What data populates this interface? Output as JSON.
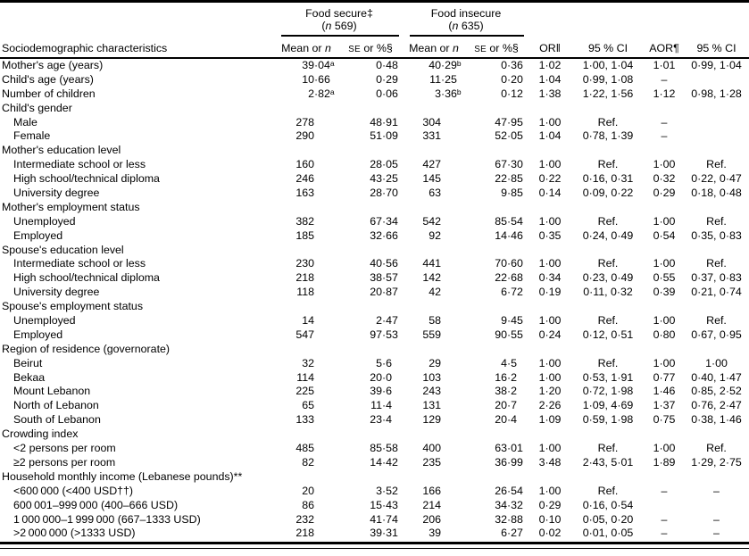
{
  "table": {
    "header": {
      "stub": "Sociodemographic characteristics",
      "groups": [
        {
          "title": "Food secure‡",
          "n_open": "(",
          "n_char": "n",
          "n_rest": " 569)"
        },
        {
          "title": "Food insecure",
          "n_open": "(",
          "n_char": "n",
          "n_rest": " 635)"
        }
      ],
      "subheaders": {
        "mean_prefix": "Mean or ",
        "mean_n": "n",
        "se_sc": "SE",
        "se_suffix": " or %§",
        "or": "OR‖",
        "ci": "95 % CI",
        "aor": "AOR¶",
        "ci2": "95 % CI"
      }
    },
    "rows": [
      {
        "label": "Mother's age (years)",
        "indent": 0,
        "cells": [
          "39·04ᵃ",
          "0·48",
          "40·29ᵇ",
          "0·36",
          "1·02",
          "1·00, 1·04",
          "1·01",
          "0·99, 1·04"
        ]
      },
      {
        "label": "Child's age (years)",
        "indent": 0,
        "cells": [
          "10·66",
          "0·29",
          "11·25",
          "0·20",
          "1·04",
          "0·99, 1·08",
          "–",
          ""
        ]
      },
      {
        "label": "Number of children",
        "indent": 0,
        "cells": [
          "2·82ᵃ",
          "0·06",
          "3·36ᵇ",
          "0·12",
          "1·38",
          "1·22, 1·56",
          "1·12",
          "0·98, 1·28"
        ]
      },
      {
        "label": "Child's gender",
        "indent": 0,
        "cells": null
      },
      {
        "label": "Male",
        "indent": 1,
        "cells": [
          "278",
          "48·91",
          "304",
          "47·95",
          "1·00",
          "Ref.",
          "–",
          ""
        ]
      },
      {
        "label": "Female",
        "indent": 1,
        "cells": [
          "290",
          "51·09",
          "331",
          "52·05",
          "1·04",
          "0·78, 1·39",
          "–",
          ""
        ]
      },
      {
        "label": "Mother's education level",
        "indent": 0,
        "cells": null
      },
      {
        "label": "Intermediate school or less",
        "indent": 1,
        "cells": [
          "160",
          "28·05",
          "427",
          "67·30",
          "1·00",
          "Ref.",
          "1·00",
          "Ref."
        ]
      },
      {
        "label": "High school/technical diploma",
        "indent": 1,
        "cells": [
          "246",
          "43·25",
          "145",
          "22·85",
          "0·22",
          "0·16, 0·31",
          "0·32",
          "0·22, 0·47"
        ]
      },
      {
        "label": "University degree",
        "indent": 1,
        "cells": [
          "163",
          "28·70",
          "63",
          "9·85",
          "0·14",
          "0·09, 0·22",
          "0·29",
          "0·18, 0·48"
        ]
      },
      {
        "label": "Mother's employment status",
        "indent": 0,
        "cells": null
      },
      {
        "label": "Unemployed",
        "indent": 1,
        "cells": [
          "382",
          "67·34",
          "542",
          "85·54",
          "1·00",
          "Ref.",
          "1·00",
          "Ref."
        ]
      },
      {
        "label": "Employed",
        "indent": 1,
        "cells": [
          "185",
          "32·66",
          "92",
          "14·46",
          "0·35",
          "0·24, 0·49",
          "0·54",
          "0·35, 0·83"
        ]
      },
      {
        "label": "Spouse's education level",
        "indent": 0,
        "cells": null
      },
      {
        "label": "Intermediate school or less",
        "indent": 1,
        "cells": [
          "230",
          "40·56",
          "441",
          "70·60",
          "1·00",
          "Ref.",
          "1·00",
          "Ref."
        ]
      },
      {
        "label": "High school/technical diploma",
        "indent": 1,
        "cells": [
          "218",
          "38·57",
          "142",
          "22·68",
          "0·34",
          "0·23, 0·49",
          "0·55",
          "0·37, 0·83"
        ]
      },
      {
        "label": "University degree",
        "indent": 1,
        "cells": [
          "118",
          "20·87",
          "42",
          "6·72",
          "0·19",
          "0·11, 0·32",
          "0·39",
          "0·21, 0·74"
        ]
      },
      {
        "label": "Spouse's employment status",
        "indent": 0,
        "cells": null
      },
      {
        "label": "Unemployed",
        "indent": 1,
        "cells": [
          "14",
          "2·47",
          "58",
          "9·45",
          "1·00",
          "Ref.",
          "1·00",
          "Ref."
        ]
      },
      {
        "label": "Employed",
        "indent": 1,
        "cells": [
          "547",
          "97·53",
          "559",
          "90·55",
          "0·24",
          "0·12, 0·51",
          "0·80",
          "0·67, 0·95"
        ]
      },
      {
        "label": "Region of residence (governorate)",
        "indent": 0,
        "cells": null
      },
      {
        "label": "Beirut",
        "indent": 1,
        "cells": [
          "32",
          "5·6",
          "29",
          "4·5",
          "1·00",
          "Ref.",
          "1·00",
          "1·00"
        ]
      },
      {
        "label": "Bekaa",
        "indent": 1,
        "cells": [
          "114",
          "20·0",
          "103",
          "16·2",
          "1·00",
          "0·53, 1·91",
          "0·77",
          "0·40, 1·47"
        ]
      },
      {
        "label": "Mount Lebanon",
        "indent": 1,
        "cells": [
          "225",
          "39·6",
          "243",
          "38·2",
          "1·20",
          "0·72, 1·98",
          "1·46",
          "0·85, 2·52"
        ]
      },
      {
        "label": "North of Lebanon",
        "indent": 1,
        "cells": [
          "65",
          "11·4",
          "131",
          "20·7",
          "2·26",
          "1·09, 4·69",
          "1·37",
          "0·76, 2·47"
        ]
      },
      {
        "label": "South of Lebanon",
        "indent": 1,
        "cells": [
          "133",
          "23·4",
          "129",
          "20·4",
          "1·09",
          "0·59, 1·98",
          "0·75",
          "0·38, 1·46"
        ]
      },
      {
        "label": "Crowding index",
        "indent": 0,
        "cells": null
      },
      {
        "label": "<2 persons per room",
        "indent": 1,
        "cells": [
          "485",
          "85·58",
          "400",
          "63·01",
          "1·00",
          "Ref.",
          "1·00",
          "Ref."
        ]
      },
      {
        "label": "≥2 persons per room",
        "indent": 1,
        "cells": [
          "82",
          "14·42",
          "235",
          "36·99",
          "3·48",
          "2·43, 5·01",
          "1·89",
          "1·29, 2·75"
        ]
      },
      {
        "label": "Household monthly income (Lebanese pounds)**",
        "indent": 0,
        "cells": null
      },
      {
        "label": "<600 000 (<400 USD††)",
        "indent": 1,
        "cells": [
          "20",
          "3·52",
          "166",
          "26·54",
          "1·00",
          "Ref.",
          "–",
          "–"
        ]
      },
      {
        "label": "600 001–999 000 (400–666 USD)",
        "indent": 1,
        "cells": [
          "86",
          "15·43",
          "214",
          "34·32",
          "0·29",
          "0·16, 0·54",
          "",
          ""
        ]
      },
      {
        "label": "1 000 000–1 999 000 (667–1333 USD)",
        "indent": 1,
        "cells": [
          "232",
          "41·74",
          "206",
          "32·88",
          "0·10",
          "0·05, 0·20",
          "–",
          "–"
        ]
      },
      {
        "label": ">2 000 000 (>1333 USD)",
        "indent": 1,
        "cells": [
          "218",
          "39·31",
          "39",
          "6·27",
          "0·02",
          "0·01, 0·05",
          "–",
          "–"
        ]
      }
    ]
  }
}
